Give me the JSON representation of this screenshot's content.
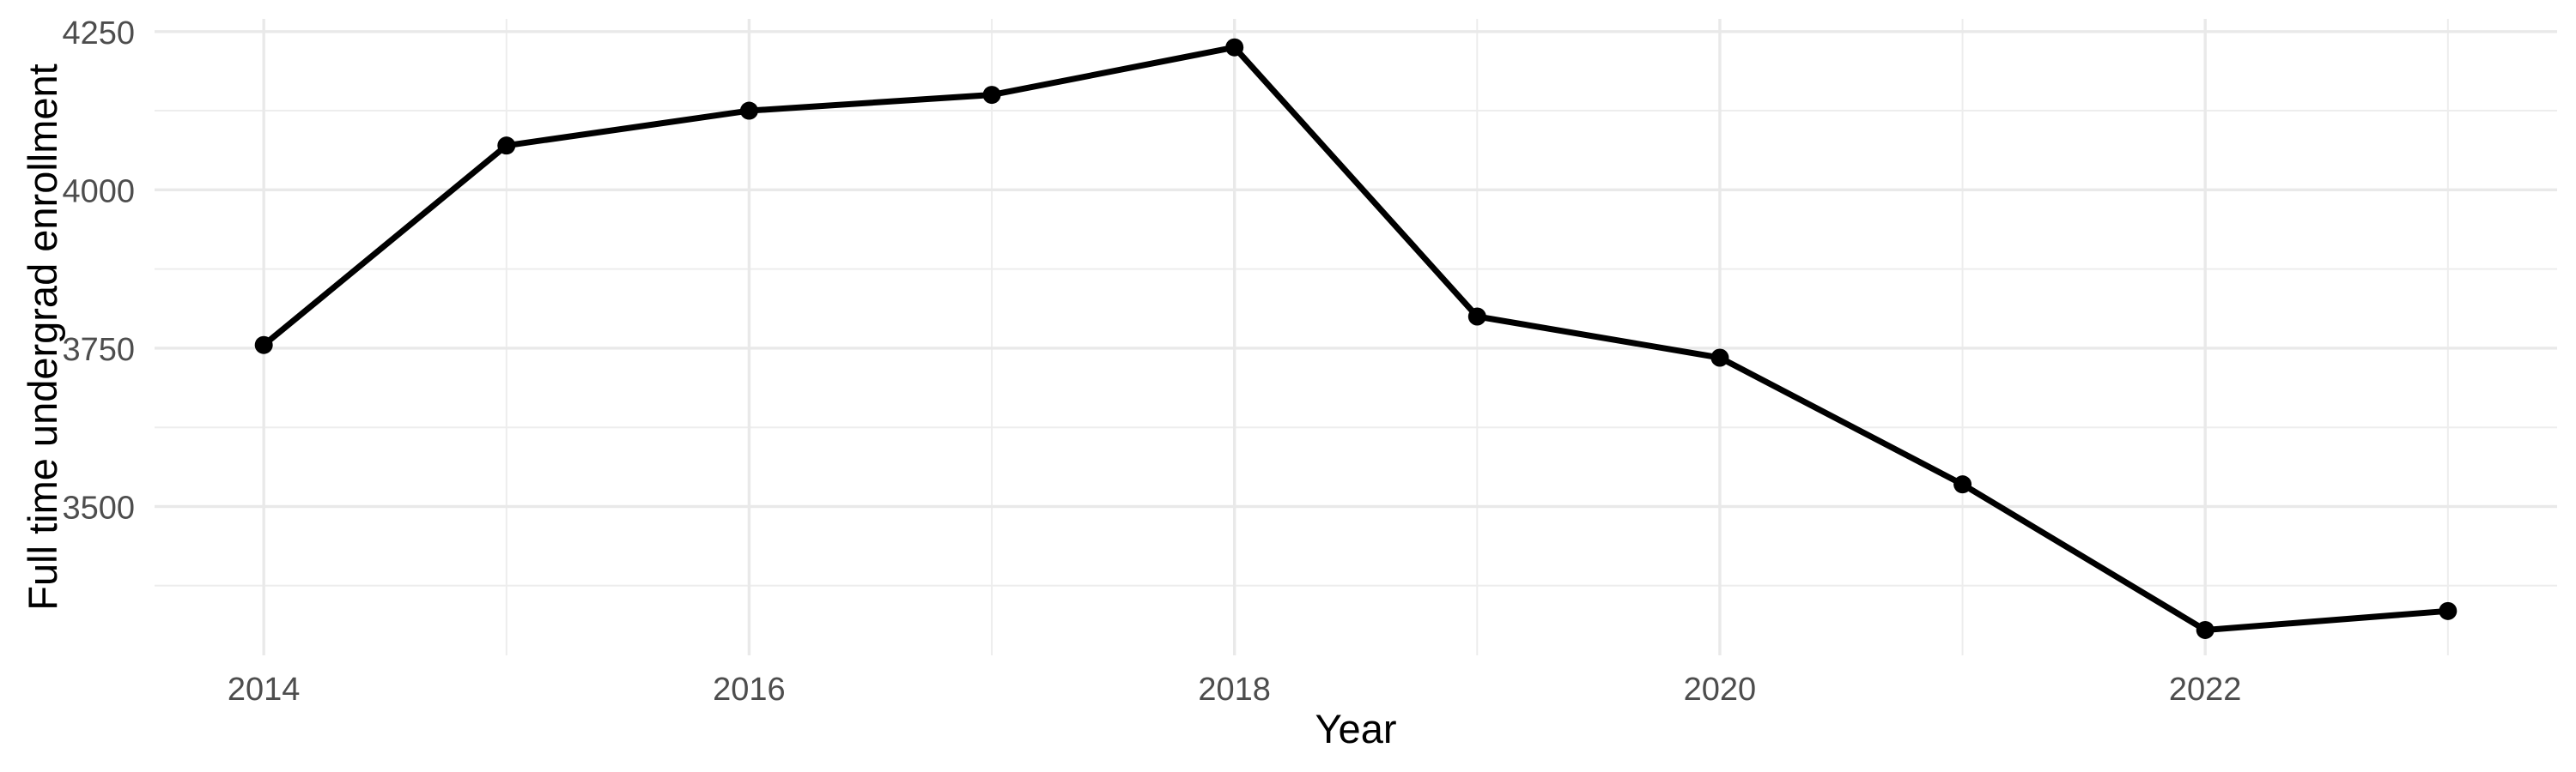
{
  "page": {
    "background": "#FFFFFF"
  },
  "chart_data": {
    "type": "line",
    "title": "",
    "xlabel": "Year",
    "ylabel": "Full time undergrad enrollment",
    "x": [
      2014,
      2015,
      2016,
      2017,
      2018,
      2019,
      2020,
      2021,
      2022,
      2023
    ],
    "series": [
      {
        "name": "Full time undergrad enrollment",
        "color": "#000000",
        "marker": "circle",
        "values": [
          3755,
          4070,
          4125,
          4150,
          4225,
          3800,
          3735,
          3535,
          3305,
          3335
        ]
      }
    ],
    "xlim": [
      2013.55,
      2023.45
    ],
    "ylim": [
      3265,
      4270
    ],
    "x_ticks_major": [
      2014,
      2016,
      2018,
      2020,
      2022
    ],
    "x_tick_labels": [
      "2014",
      "2016",
      "2018",
      "2020",
      "2022"
    ],
    "x_ticks_minor": [
      2015,
      2017,
      2019,
      2021,
      2023
    ],
    "y_ticks_major": [
      3500,
      3750,
      4000,
      4250
    ],
    "y_tick_labels": [
      "3500",
      "3750",
      "4000",
      "4250"
    ],
    "y_ticks_minor": [
      3375,
      3625,
      3875,
      4125
    ],
    "grid": "major-and-minor",
    "legend_position": "none",
    "style": {
      "background": "#FFFFFF",
      "grid_major_color": "#E9E9E9",
      "grid_minor_color": "#EDEDED",
      "tick_label_color": "#4D4D4D",
      "axis_title_color": "#000000",
      "line_color": "#000000",
      "point_color": "#000000"
    }
  }
}
